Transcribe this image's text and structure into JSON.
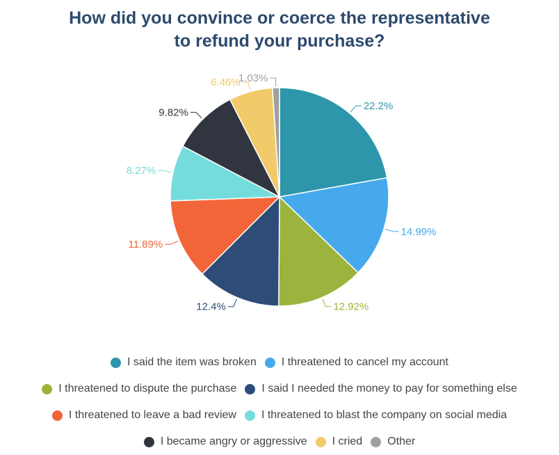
{
  "title_lines": [
    "How did you convince or coerce the representative",
    "to refund your purchase?"
  ],
  "chart_data": {
    "type": "pie",
    "title": "How did you convince or coerce the representative to refund your purchase?",
    "legend_position": "bottom",
    "slices": [
      {
        "label": "I said the item was broken",
        "value": 22.2,
        "display": "22.2%",
        "color": "#2e96ab"
      },
      {
        "label": "I threatened to cancel my account",
        "value": 14.99,
        "display": "14.99%",
        "color": "#46a9ec"
      },
      {
        "label": "I threatened to dispute the purchase",
        "value": 12.92,
        "display": "12.92%",
        "color": "#9cb43e"
      },
      {
        "label": "I said I needed the money to pay for something else",
        "value": 12.4,
        "display": "12.4%",
        "color": "#2d4c78"
      },
      {
        "label": "I threatened to leave a bad review",
        "value": 11.89,
        "display": "11.89%",
        "color": "#f26539"
      },
      {
        "label": "I threatened to blast the company on social media",
        "value": 8.27,
        "display": "8.27%",
        "color": "#75dcdd"
      },
      {
        "label": "I became angry or aggressive",
        "value": 9.82,
        "display": "9.82%",
        "color": "#31353f"
      },
      {
        "label": "I cried",
        "value": 6.46,
        "display": "6.46%",
        "color": "#f1cb6a"
      },
      {
        "label": "Other",
        "value": 1.03,
        "display": "1.03%",
        "color": "#a0a0a0"
      }
    ]
  }
}
